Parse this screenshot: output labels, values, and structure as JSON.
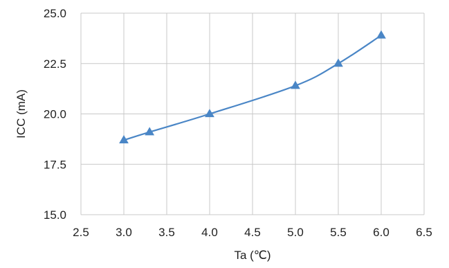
{
  "chart_data": {
    "type": "line",
    "title": "",
    "xlabel": "Ta (℃)",
    "ylabel": "ICC (mA)",
    "xlim": [
      2.5,
      6.5
    ],
    "ylim": [
      15.0,
      25.0
    ],
    "x_ticks": [
      "2.5",
      "3.0",
      "3.5",
      "4.0",
      "4.5",
      "5.0",
      "5.5",
      "6.0",
      "6.5"
    ],
    "y_ticks": [
      "15.0",
      "17.5",
      "20.0",
      "22.5",
      "25.0"
    ],
    "grid": true,
    "legend": "none",
    "series": [
      {
        "x": [
          3.0,
          3.3,
          4.0,
          5.0,
          5.5,
          6.0
        ],
        "y": [
          18.7,
          19.1,
          20.0,
          21.4,
          22.5,
          23.9
        ],
        "color": "#4a86c6",
        "marker": "triangle"
      }
    ]
  }
}
